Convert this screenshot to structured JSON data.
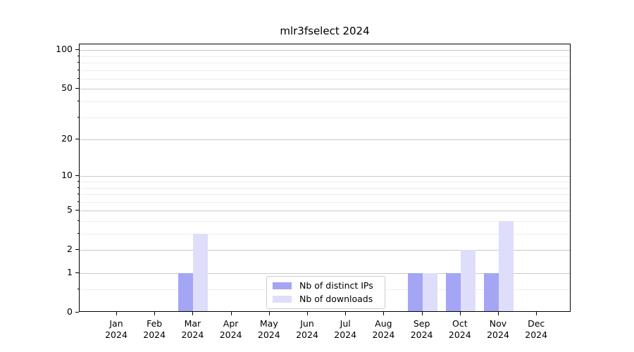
{
  "chart_data": {
    "type": "bar",
    "title": "mlr3fselect 2024",
    "categories": [
      "Jan 2024",
      "Feb 2024",
      "Mar 2024",
      "Apr 2024",
      "May 2024",
      "Jun 2024",
      "Jul 2024",
      "Aug 2024",
      "Sep 2024",
      "Oct 2024",
      "Nov 2024",
      "Dec 2024"
    ],
    "series": [
      {
        "name": "Nb of distinct IPs",
        "color": "#a5a5f5",
        "values": [
          0,
          0,
          1,
          0,
          0,
          0,
          0,
          0,
          1,
          1,
          1,
          0
        ]
      },
      {
        "name": "Nb of downloads",
        "color": "#dedefa",
        "values": [
          0,
          0,
          3,
          0,
          0,
          0,
          0,
          0,
          1,
          2,
          4,
          0
        ]
      }
    ],
    "yscale": "log10(1+x)",
    "ylim": [
      0,
      111
    ],
    "yticks": [
      0,
      1,
      2,
      5,
      10,
      20,
      50,
      100
    ],
    "minor_gridlines": [
      0.5,
      3,
      4,
      6,
      7,
      8,
      9,
      30,
      40,
      60,
      70,
      80,
      90
    ],
    "grid": "on",
    "legend_position": "lower center inside plot",
    "colors": {
      "grid_major": "#c9c9c9",
      "grid_minor": "#ededed",
      "axis": "#000000",
      "text": "#000000",
      "background": "#ffffff"
    }
  }
}
